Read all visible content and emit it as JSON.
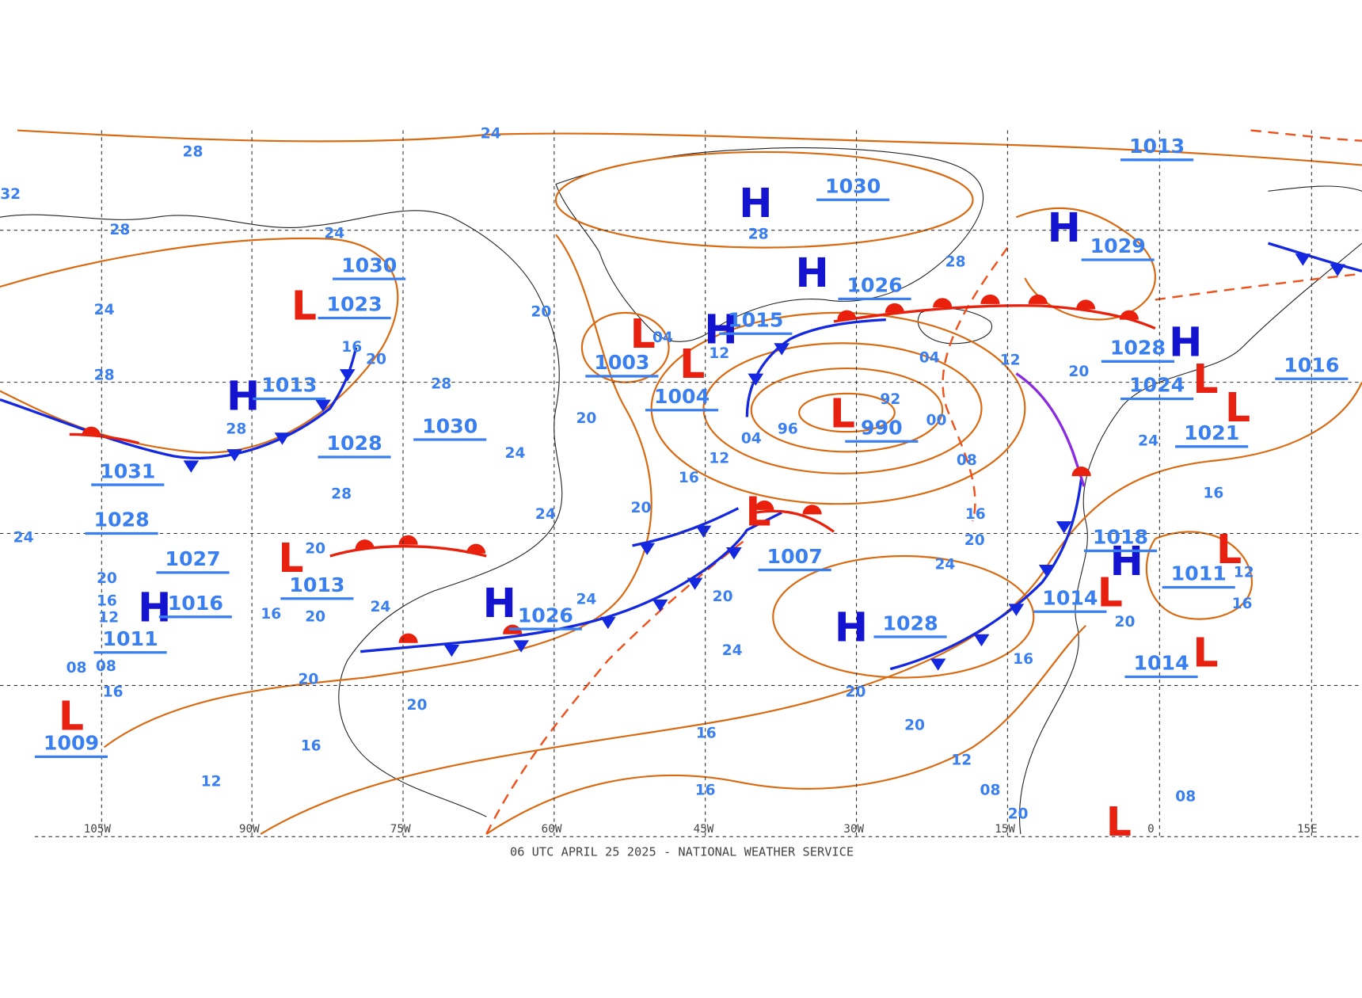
{
  "footer": "06 UTC APRIL 25 2025 - NATIONAL WEATHER SERVICE",
  "longitudes": [
    "105W",
    "90W",
    "75W",
    "60W",
    "45W",
    "30W",
    "15W",
    "0",
    "15E"
  ],
  "symbols": [
    "H",
    "H",
    "H",
    "H",
    "L",
    "H",
    "L",
    "L",
    "L",
    "H",
    "L",
    "L",
    "H",
    "H",
    "L",
    "H",
    "L",
    "L",
    "H",
    "L",
    "L",
    "L",
    "L"
  ],
  "pressures": [
    "1030",
    "1026",
    "1029",
    "1013",
    "1028",
    "1024",
    "1021",
    "1018",
    "1011",
    "1014",
    "1014",
    "1028",
    "990",
    "1004",
    "1003",
    "1015",
    "1007",
    "1028",
    "1026",
    "1030",
    "1030",
    "1023",
    "1013",
    "1031",
    "1028",
    "1027",
    "1013",
    "1016",
    "1011",
    "1009",
    "1016"
  ],
  "isobar_labels": [
    "28",
    "24",
    "28",
    "28",
    "24",
    "28",
    "24",
    "20",
    "20",
    "16",
    "28",
    "28",
    "28",
    "04",
    "12",
    "04",
    "12",
    "20",
    "92",
    "96",
    "04",
    "00",
    "08",
    "12",
    "16",
    "20",
    "24",
    "28",
    "20",
    "24",
    "16",
    "20",
    "24",
    "20",
    "24",
    "24",
    "20",
    "16",
    "20",
    "24",
    "20",
    "16",
    "20",
    "12",
    "20",
    "16",
    "12",
    "08",
    "08",
    "16",
    "24",
    "20",
    "20",
    "16",
    "16",
    "12",
    "08",
    "20",
    "16",
    "20",
    "16",
    "12",
    "16",
    "24",
    "08",
    "32"
  ]
}
